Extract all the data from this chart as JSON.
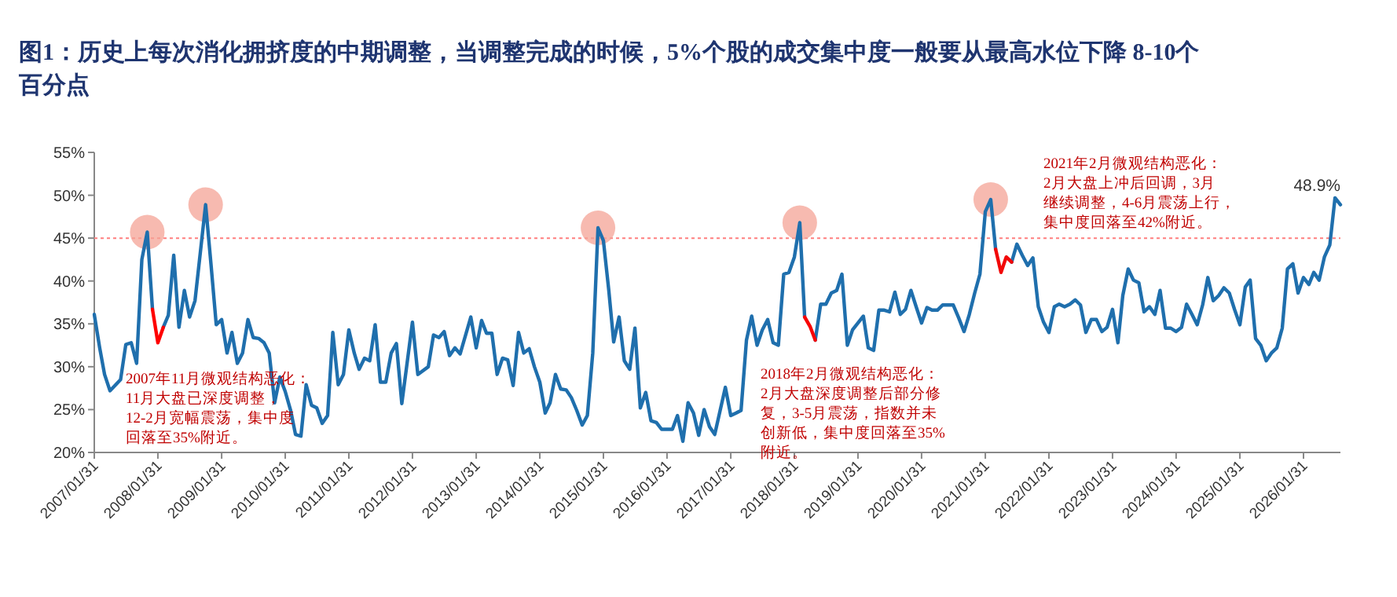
{
  "chart_data": {
    "type": "line",
    "title": "图1：历史上每次消化拥挤度的中期调整，当调整完成的时候，5%个股的成交集中度一般要从最高水位下降 8-10个百分点",
    "xlim": [
      "2007-01",
      "2026-08"
    ],
    "xticks": [
      {
        "value": "2007-01",
        "label": "2007/01/31"
      },
      {
        "value": "2008-01",
        "label": "2008/01/31"
      },
      {
        "value": "2009-01",
        "label": "2009/01/31"
      },
      {
        "value": "2010-01",
        "label": "2010/01/31"
      },
      {
        "value": "2011-01",
        "label": "2011/01/31"
      },
      {
        "value": "2012-01",
        "label": "2012/01/31"
      },
      {
        "value": "2013-01",
        "label": "2013/01/31"
      },
      {
        "value": "2014-01",
        "label": "2014/01/31"
      },
      {
        "value": "2015-01",
        "label": "2015/01/31"
      },
      {
        "value": "2016-01",
        "label": "2016/01/31"
      },
      {
        "value": "2017-01",
        "label": "2017/01/31"
      },
      {
        "value": "2018-01",
        "label": "2018/01/31"
      },
      {
        "value": "2019-01",
        "label": "2019/01/31"
      },
      {
        "value": "2020-01",
        "label": "2020/01/31"
      },
      {
        "value": "2021-01",
        "label": "2021/01/31"
      },
      {
        "value": "2022-01",
        "label": "2022/01/31"
      },
      {
        "value": "2023-01",
        "label": "2023/01/31"
      },
      {
        "value": "2024-01",
        "label": "2024/01/31"
      },
      {
        "value": "2025-01",
        "label": "2025/01/31"
      },
      {
        "value": "2026-01",
        "label": "2026/01/31"
      }
    ],
    "ylim": [
      20,
      55
    ],
    "yticks": [
      {
        "value": 20,
        "label": "20%"
      },
      {
        "value": 25,
        "label": "25%"
      },
      {
        "value": 30,
        "label": "30%"
      },
      {
        "value": 35,
        "label": "35%"
      },
      {
        "value": 40,
        "label": "40%"
      },
      {
        "value": 45,
        "label": "45%"
      },
      {
        "value": 50,
        "label": "50%"
      },
      {
        "value": 55,
        "label": "55%"
      }
    ],
    "ref_lines": [
      {
        "axis": "y",
        "value": 45,
        "color": "#ff7f7f",
        "line_style": "dotted"
      }
    ],
    "series": [
      {
        "type": "scatter",
        "color": "#f4a395",
        "x": [
          "2007-11",
          "2008-10",
          "2014-12",
          "2018-02",
          "2021-02"
        ],
        "values": [
          45.7,
          48.9,
          46.2,
          46.8,
          49.5
        ]
      },
      {
        "type": "line",
        "color": "#1f6fad",
        "x": [
          "2007-01",
          "2007-02",
          "2007-03",
          "2007-04",
          "2007-06",
          "2007-07",
          "2007-08",
          "2007-09",
          "2007-10",
          "2007-11",
          "2007-12"
        ],
        "values": [
          36.1,
          32.2,
          29.1,
          27.2,
          28.5,
          32.6,
          32.8,
          30.4,
          42.5,
          45.7,
          36.7
        ]
      },
      {
        "type": "line",
        "color": "#1f6fad",
        "x": [
          "2008-02",
          "2008-03",
          "2008-04",
          "2008-05",
          "2008-06",
          "2008-07",
          "2008-08",
          "2008-10",
          "2008-11",
          "2008-12",
          "2009-01",
          "2009-02",
          "2009-03",
          "2009-04",
          "2009-05",
          "2009-06",
          "2009-07",
          "2009-08",
          "2009-09",
          "2009-10",
          "2009-11",
          "2009-12",
          "2010-01",
          "2010-02",
          "2010-03",
          "2010-04",
          "2010-05",
          "2010-06",
          "2010-07",
          "2010-08",
          "2010-09",
          "2010-10",
          "2010-11",
          "2010-12",
          "2011-01",
          "2011-02",
          "2011-03",
          "2011-04",
          "2011-05",
          "2011-06",
          "2011-07",
          "2011-08",
          "2011-09",
          "2011-10",
          "2011-11",
          "2012-01",
          "2012-02",
          "2012-04",
          "2012-05",
          "2012-06",
          "2012-07",
          "2012-08",
          "2012-09",
          "2012-10",
          "2012-12",
          "2013-01",
          "2013-02",
          "2013-03",
          "2013-04",
          "2013-05",
          "2013-06",
          "2013-07",
          "2013-08",
          "2013-09",
          "2013-10",
          "2013-11",
          "2013-12",
          "2014-01",
          "2014-02",
          "2014-03",
          "2014-04",
          "2014-05",
          "2014-06",
          "2014-07",
          "2014-08",
          "2014-09",
          "2014-10",
          "2014-11",
          "2014-12",
          "2015-01",
          "2015-02",
          "2015-03",
          "2015-04",
          "2015-05",
          "2015-06",
          "2015-07",
          "2015-08",
          "2015-09",
          "2015-10",
          "2015-11",
          "2015-12",
          "2016-01",
          "2016-02",
          "2016-03",
          "2016-04",
          "2016-05",
          "2016-06",
          "2016-07",
          "2016-08",
          "2016-09",
          "2016-10",
          "2016-11",
          "2016-12",
          "2017-01",
          "2017-02",
          "2017-03",
          "2017-04",
          "2017-05",
          "2017-06",
          "2017-07",
          "2017-08",
          "2017-09",
          "2017-10",
          "2017-11",
          "2017-12",
          "2018-01",
          "2018-02",
          "2018-03"
        ],
        "values": [
          34.6,
          36,
          43,
          34.6,
          38.9,
          35.8,
          37.7,
          48.9,
          41.9,
          34.9,
          35.5,
          31.6,
          34,
          30.4,
          31.6,
          35.5,
          33.4,
          33.3,
          32.8,
          31.6,
          25.8,
          28.8,
          27.1,
          24.9,
          22.1,
          21.9,
          27.9,
          25.5,
          25.2,
          23.4,
          24.3,
          34,
          27.9,
          29.1,
          34.3,
          31.6,
          29.7,
          31,
          30.7,
          34.9,
          28.2,
          28.2,
          31.6,
          32.7,
          25.7,
          35.2,
          29.1,
          30,
          33.7,
          33.4,
          34.1,
          31.3,
          32.2,
          31.5,
          35.8,
          32.2,
          35.4,
          33.9,
          33.9,
          29.1,
          31,
          30.8,
          27.8,
          34,
          31.6,
          32.1,
          30,
          28.2,
          24.6,
          25.8,
          29.1,
          27.4,
          27.3,
          26.4,
          24.9,
          23.2,
          24.3,
          31.6,
          46.2,
          44.7,
          38.9,
          32.9,
          35.8,
          30.7,
          29.7,
          34.5,
          25.2,
          27,
          23.7,
          23.5,
          22.7,
          22.7,
          22.7,
          24.3,
          21.3,
          25.8,
          24.6,
          22,
          25,
          23,
          22.1,
          24.9,
          27.6,
          24.3,
          24.6,
          24.9,
          33.1,
          35.9,
          32.5,
          34.3,
          35.5,
          32.8,
          32.5,
          40.8,
          41,
          42.8,
          46.8,
          35.8
        ]
      },
      {
        "type": "line",
        "color": "#1f6fad",
        "x": [
          "2018-05",
          "2018-06",
          "2018-07",
          "2018-08",
          "2018-09",
          "2018-10",
          "2018-11",
          "2018-12",
          "2019-02",
          "2019-03",
          "2019-04",
          "2019-05",
          "2019-06",
          "2019-07",
          "2019-08",
          "2019-09",
          "2019-10",
          "2019-11",
          "2019-12",
          "2020-01",
          "2020-02",
          "2020-03",
          "2020-04",
          "2020-05",
          "2020-07",
          "2020-08",
          "2020-09",
          "2020-10",
          "2020-11",
          "2020-12",
          "2021-01",
          "2021-02",
          "2021-03"
        ],
        "values": [
          33.1,
          37.3,
          37.3,
          38.6,
          38.9,
          40.8,
          32.5,
          34.3,
          35.9,
          32.2,
          31.9,
          36.6,
          36.6,
          36.4,
          38.7,
          36.1,
          36.7,
          38.9,
          37,
          35.1,
          36.9,
          36.6,
          36.6,
          37.2,
          37.2,
          35.7,
          34.1,
          36.1,
          38.6,
          40.8,
          48.1,
          49.5,
          43.7
        ]
      },
      {
        "type": "line",
        "color": "#1f6fad",
        "x": [
          "2021-06",
          "2021-07",
          "2021-08",
          "2021-09",
          "2021-10",
          "2021-11",
          "2021-12",
          "2022-01",
          "2022-02",
          "2022-03",
          "2022-04",
          "2022-05",
          "2022-06",
          "2022-07",
          "2022-08",
          "2022-09",
          "2022-10",
          "2022-11",
          "2022-12",
          "2023-01",
          "2023-02",
          "2023-03",
          "2023-04",
          "2023-05",
          "2023-06",
          "2023-07",
          "2023-08",
          "2023-09",
          "2023-10",
          "2023-11",
          "2023-12",
          "2024-01",
          "2024-02",
          "2024-03",
          "2024-04",
          "2024-05",
          "2024-06",
          "2024-07",
          "2024-08",
          "2024-09",
          "2024-10",
          "2024-11",
          "2024-12",
          "2025-01",
          "2025-02",
          "2025-03",
          "2025-04",
          "2025-05",
          "2025-06",
          "2025-07",
          "2025-08",
          "2025-09",
          "2025-10",
          "2025-11",
          "2025-12",
          "2026-01",
          "2026-02",
          "2026-03",
          "2026-04",
          "2026-05",
          "2026-06",
          "2026-07",
          "2026-08"
        ],
        "values": [
          42.2,
          44.3,
          43,
          41.8,
          42.7,
          37,
          35.2,
          34,
          37,
          37.3,
          37,
          37.3,
          37.8,
          37.2,
          34,
          35.5,
          35.5,
          34.1,
          34.6,
          36.7,
          32.8,
          38.3,
          41.4,
          40.1,
          39.8,
          36.4,
          37,
          36.1,
          38.9,
          34.5,
          34.5,
          34.1,
          34.6,
          37.3,
          36.1,
          34.9,
          37.2,
          40.4,
          37.7,
          38.3,
          39.2,
          38.6,
          36.7,
          34.9,
          39.3,
          40.1,
          33.3,
          32.5,
          30.7,
          31.6,
          32.2,
          34.5,
          41.4,
          42,
          38.6,
          40.4,
          39.6,
          41,
          40.1,
          42.8,
          44.2,
          49.7,
          48.9
        ]
      },
      {
        "type": "line",
        "color": "#ff0000",
        "x": [
          "2007-12",
          "2008-01",
          "2008-02"
        ],
        "values": [
          36.7,
          32.8,
          34.6
        ]
      },
      {
        "type": "line",
        "color": "#f80404",
        "x": [
          "2018-03",
          "2018-04",
          "2018-05"
        ],
        "values": [
          35.8,
          34.7,
          33.1
        ]
      },
      {
        "type": "line",
        "color": "#f20808",
        "x": [
          "2021-03",
          "2021-04",
          "2021-05",
          "2021-06"
        ],
        "values": [
          43.7,
          41,
          42.8,
          42.2
        ]
      }
    ],
    "annotations": [
      "2007年11月微观结构恶化：",
      "11月大盘已深度调整，",
      "12-2月宽幅震荡，集中度",
      "回落至35%附近。",
      "2018年2月微观结构恶化：",
      "2月大盘深度调整后部分修",
      "复，3-5月震荡，指数并未",
      "创新低，集中度回落至35%",
      "附近。",
      "2021年2月微观结构恶化：",
      "2月大盘上冲后回调，3月",
      "继续调整，4-6月震荡上行，",
      "集中度回落至42%附近。",
      {
        "text": "48.9%",
        "x": "2026-08",
        "y": 48.9
      }
    ]
  }
}
